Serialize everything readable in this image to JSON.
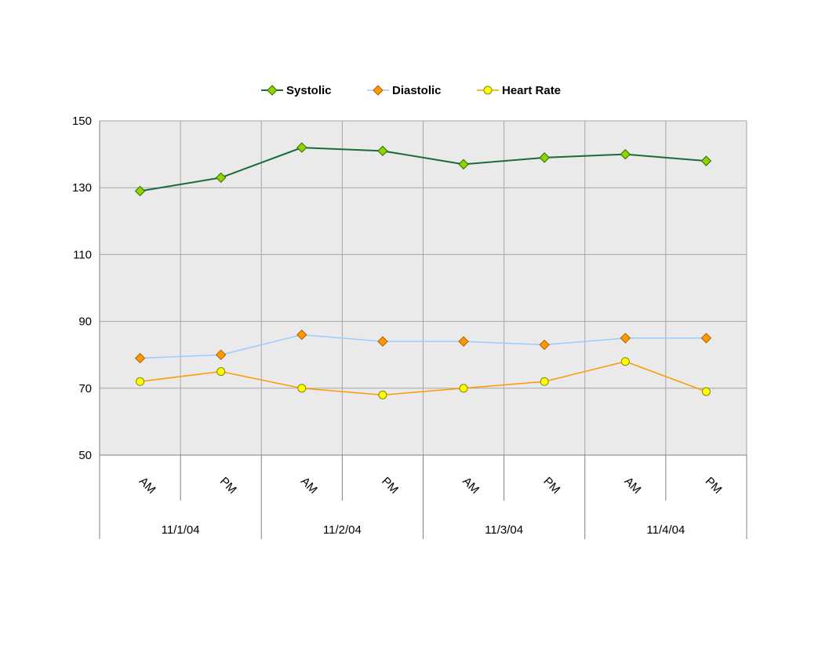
{
  "chart_data": {
    "type": "line",
    "title": "",
    "xlabel": "",
    "ylabel": "",
    "ylim": [
      50,
      150
    ],
    "yticks": [
      50,
      70,
      90,
      110,
      130,
      150
    ],
    "grid": true,
    "legend_position": "top",
    "x": [
      "AM",
      "PM",
      "AM",
      "PM",
      "AM",
      "PM",
      "AM",
      "PM"
    ],
    "groups": [
      {
        "label": "11/1/04",
        "span": 2
      },
      {
        "label": "11/2/04",
        "span": 2
      },
      {
        "label": "11/3/04",
        "span": 2
      },
      {
        "label": "11/4/04",
        "span": 2
      }
    ],
    "series": [
      {
        "name": "Systolic",
        "values": [
          129,
          133,
          142,
          141,
          137,
          139,
          140,
          138
        ],
        "line_color": "#1a6b3c",
        "marker": "diamond",
        "marker_fill": "#8fd400",
        "marker_stroke": "#2f6b00"
      },
      {
        "name": "Diastolic",
        "values": [
          79,
          80,
          86,
          84,
          84,
          83,
          85,
          85
        ],
        "line_color": "#99ccff",
        "marker": "diamond",
        "marker_fill": "#ff9900",
        "marker_stroke": "#b35f00"
      },
      {
        "name": "Heart Rate",
        "values": [
          72,
          75,
          70,
          68,
          70,
          72,
          78,
          69
        ],
        "line_color": "#ff9900",
        "marker": "circle",
        "marker_fill": "#ffff00",
        "marker_stroke": "#888800"
      }
    ],
    "colors": {
      "plot_background": "#eaeaea",
      "grid": "#a6a6a6"
    }
  }
}
